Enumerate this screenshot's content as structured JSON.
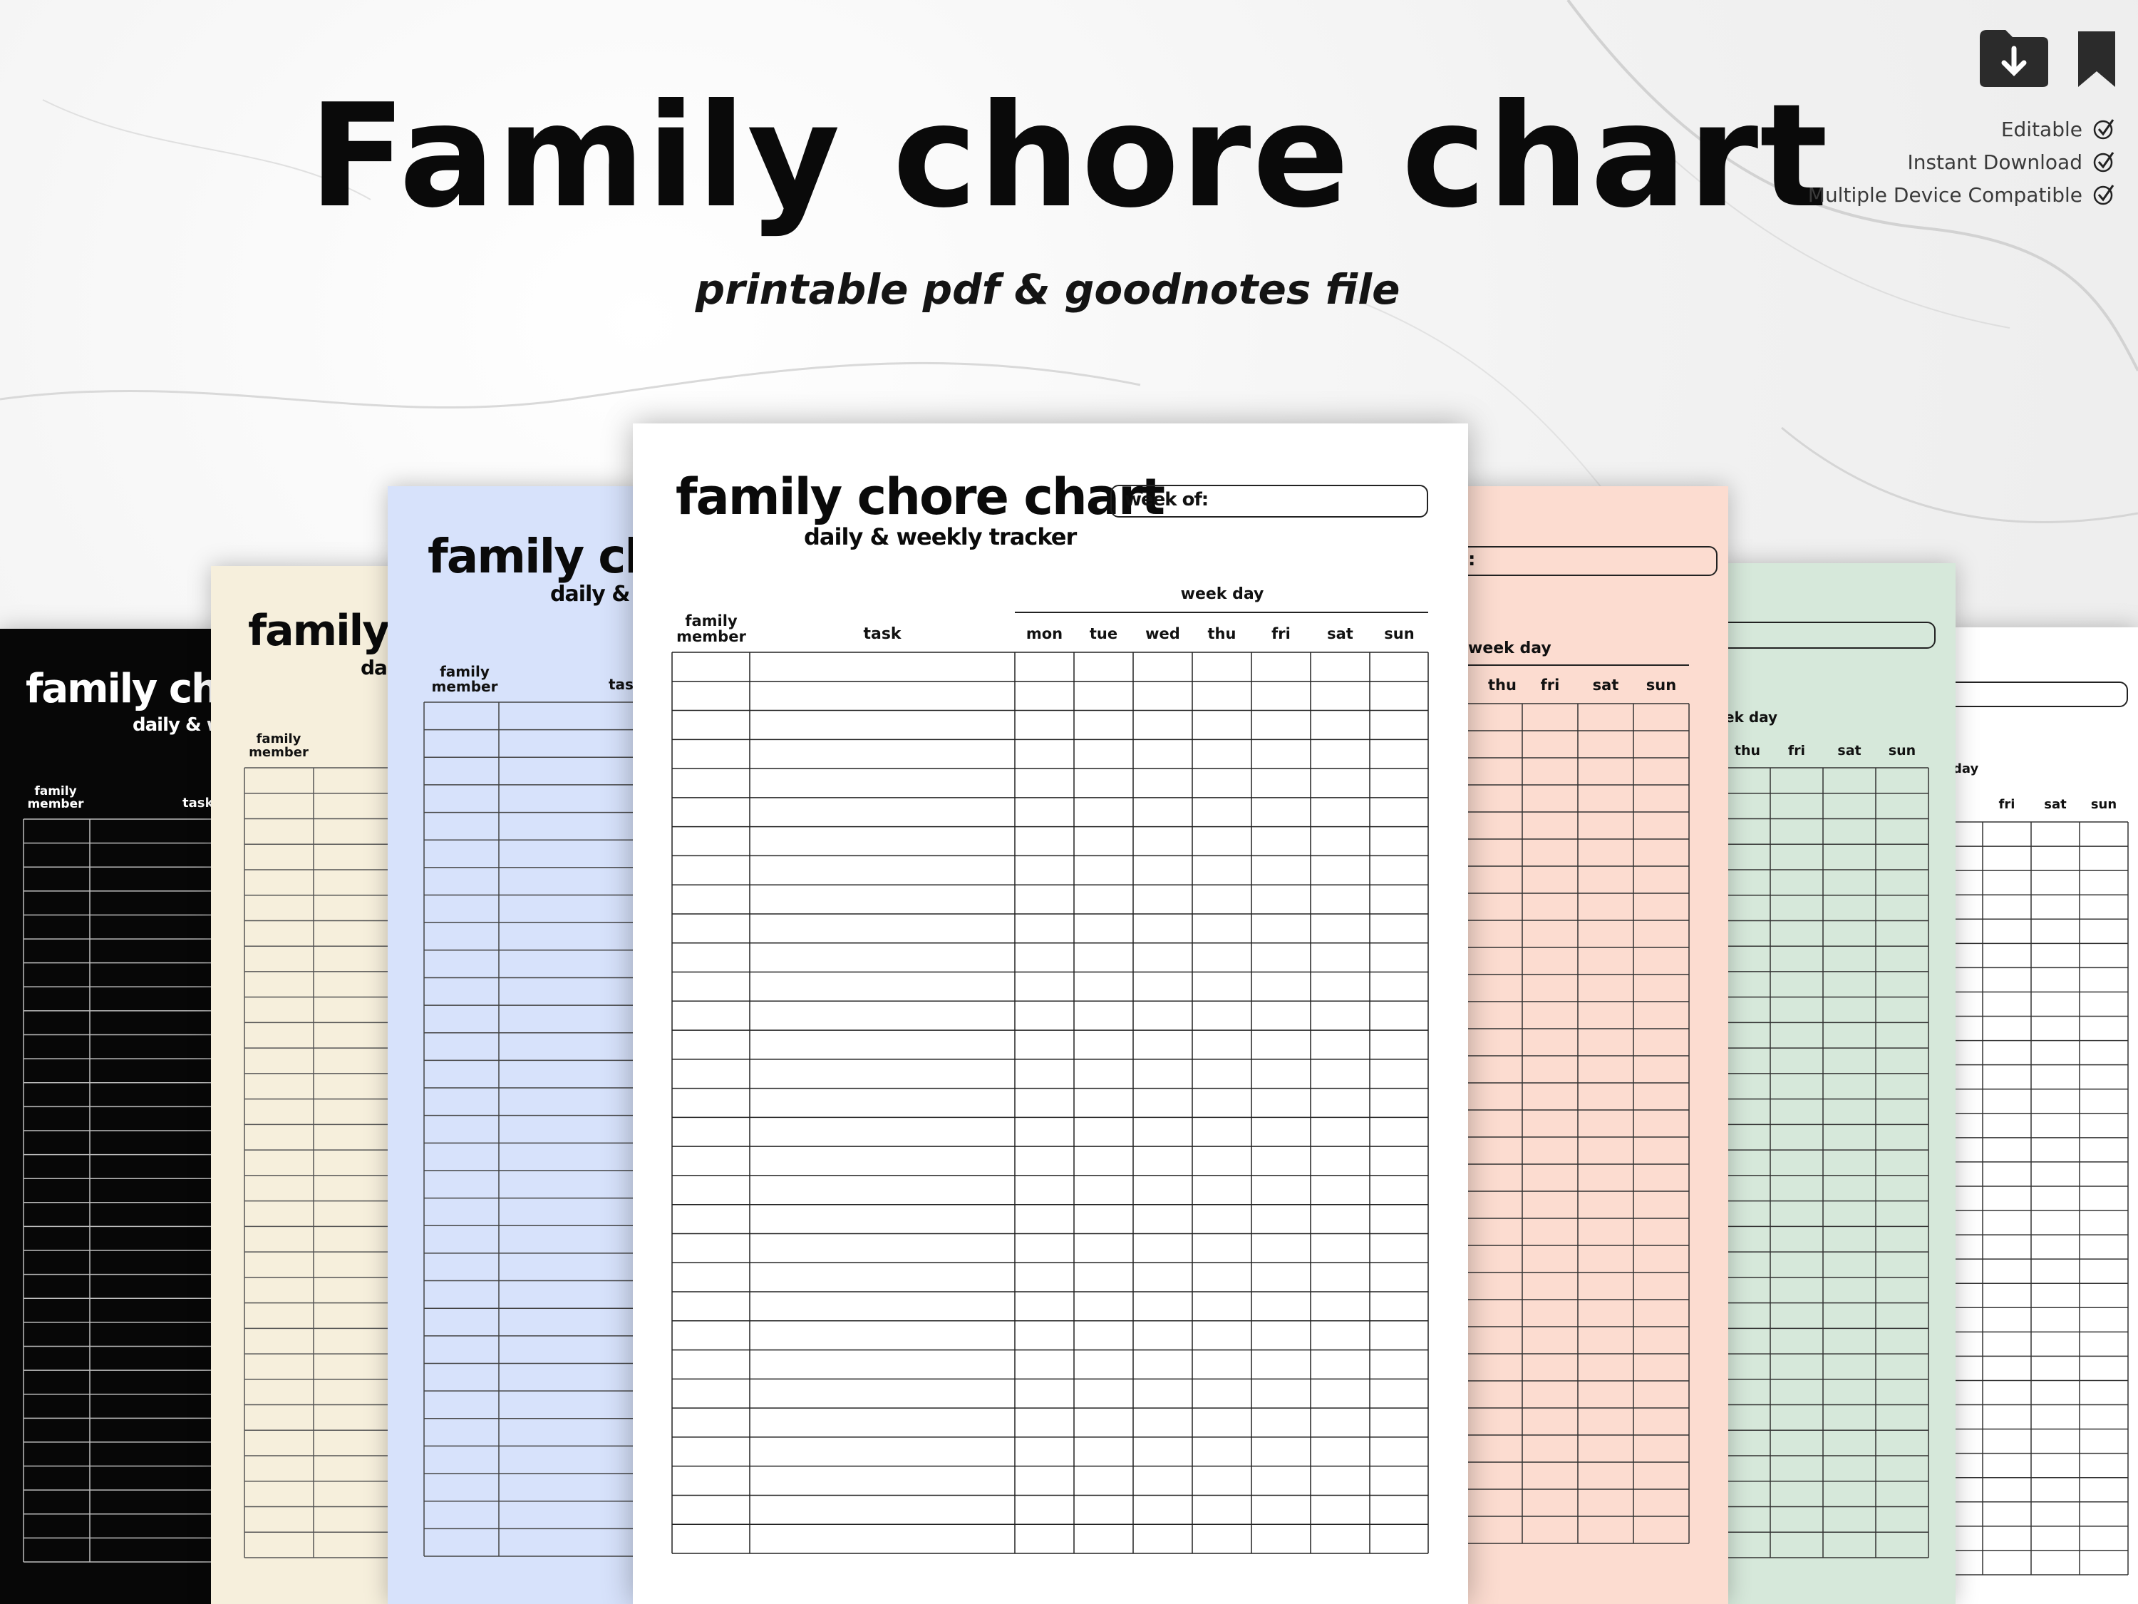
{
  "hero": {
    "title": "Family chore chart",
    "subtitle": "printable pdf & goodnotes file"
  },
  "icons": {
    "download": "folder-download-icon",
    "bookmark": "bookmark-icon"
  },
  "features": [
    {
      "label": "Editable"
    },
    {
      "label": "Instant Download"
    },
    {
      "label": "Multiple Device Compatible"
    }
  ],
  "sheet_text": {
    "title": "family chore chart",
    "subtitle": "daily & weekly tracker",
    "week_of": "week of:",
    "week_day": "week day",
    "member_line1": "family",
    "member_line2": "member",
    "task": "task",
    "days": [
      "mon",
      "tue",
      "wed",
      "thu",
      "fri",
      "sat",
      "sun"
    ]
  },
  "left_sheets": {
    "black": {
      "title": "family chor",
      "subtitle": "daily & w",
      "member_line1": "family",
      "member_line2": "member",
      "task": "task"
    },
    "cream": {
      "title": "family c",
      "subtitle": "da",
      "member_line1": "family",
      "member_line2": "member"
    },
    "blue": {
      "title": "family chor",
      "subtitle": "daily & v",
      "member_line1": "family",
      "member_line2": "member",
      "task": "task"
    }
  },
  "right_sheets": {
    "pink": {
      "week_of": ":",
      "week_day": "week day",
      "days": [
        "thu",
        "fri",
        "sat",
        "sun"
      ]
    },
    "green": {
      "week_day": "ek day",
      "days": [
        "thu",
        "fri",
        "sat",
        "sun"
      ]
    },
    "white": {
      "week_day": "day",
      "days": [
        "fri",
        "sat",
        "sun"
      ]
    }
  },
  "colors": {
    "black_sheet": "#070707",
    "cream_sheet": "#f6efdc",
    "blue_sheet": "#d7e2fb",
    "main_sheet": "#ffffff",
    "pink_sheet": "#fcdcd0",
    "green_sheet": "#d6e8da",
    "white_sheet": "#ffffff"
  },
  "grid": {
    "main_rows": 31,
    "black_rows": 31,
    "cream_rows": 31,
    "blue_rows": 31,
    "pink_rows": 31,
    "green_rows": 31,
    "white_rows": 31
  }
}
